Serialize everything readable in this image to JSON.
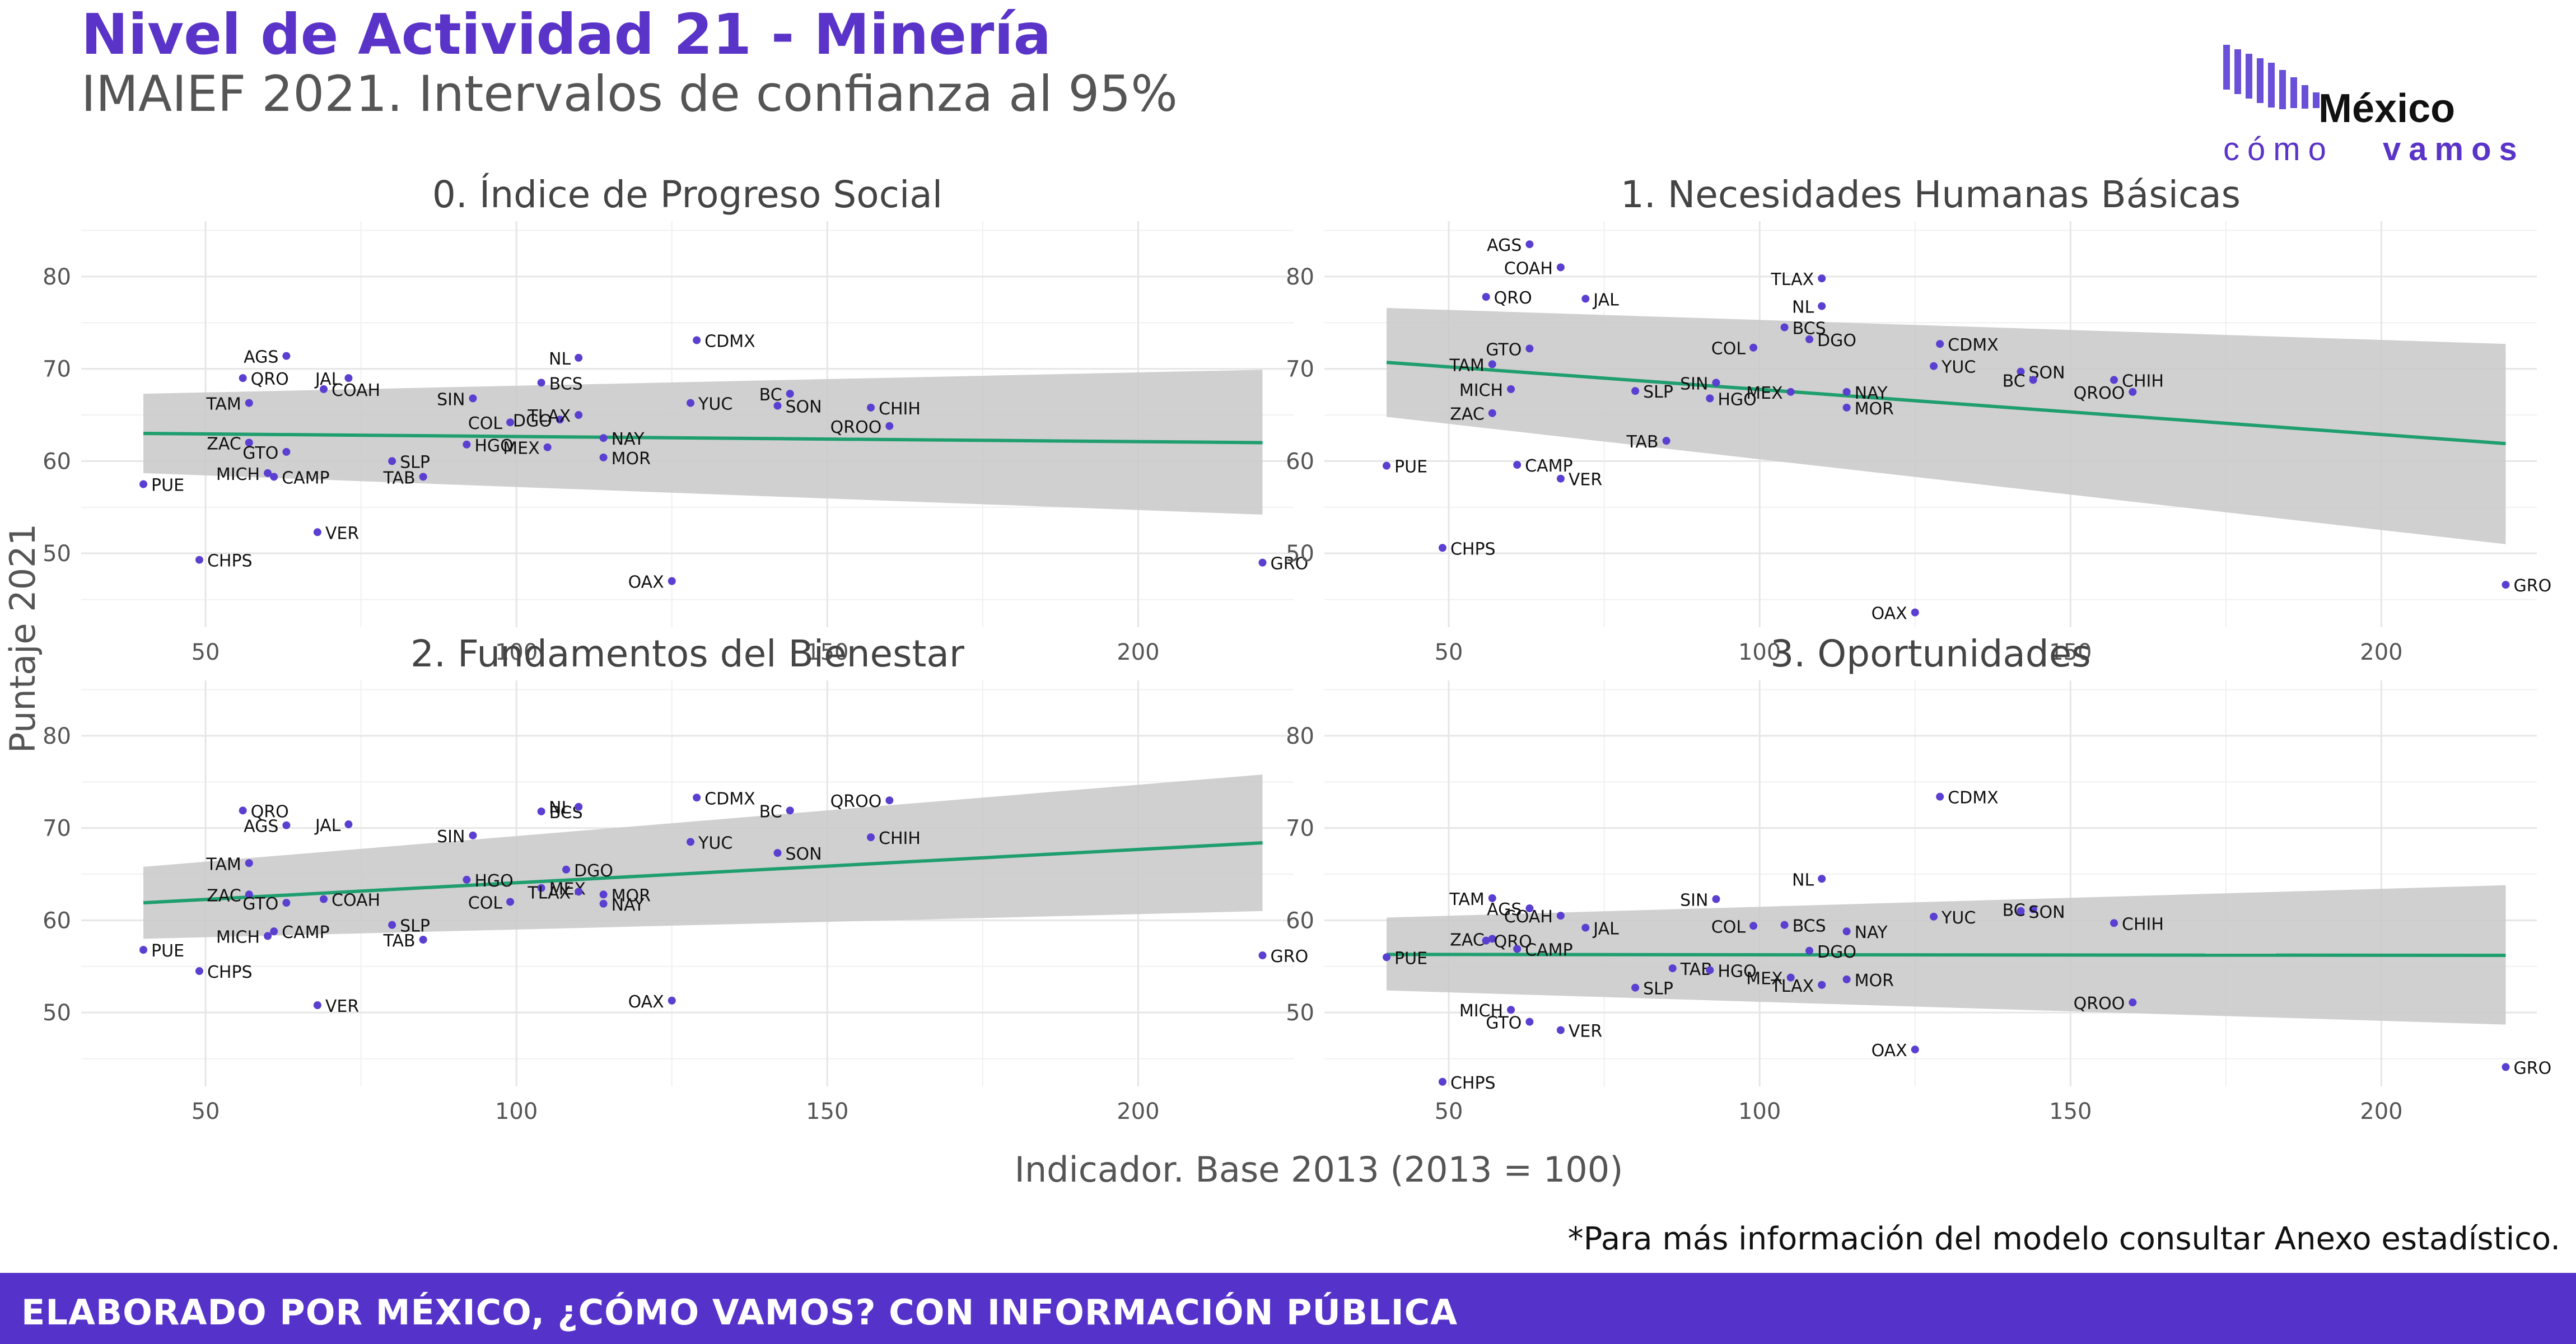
{
  "title": "Nivel de Actividad 21 - Minería",
  "subtitle": "IMAIEF 2021. Intervalos de confianza al 95%",
  "logo": {
    "line1": "México",
    "line2_a": "cómo",
    "line2_b": "vamos"
  },
  "footnote": "*Para más información del modelo consultar Anexo estadístico.",
  "footer": "ELABORADO POR MÉXICO, ¿CÓMO VAMOS? CON INFORMACIÓN PÚBLICA",
  "colors": {
    "title": "#5a34c8",
    "point": "#5a3fd0",
    "trend": "#1f9e6e",
    "ribbon": "#c8c8c8",
    "grid": "#e6e6e6",
    "footer": "#5532c9"
  },
  "chart_data": [
    {
      "type": "scatter",
      "title": "0. Índice de Progreso Social",
      "xlabel": "Indicador. Base 2013 (2013 = 100)",
      "ylabel": "Puntaje 2021",
      "xlim": [
        30,
        225
      ],
      "ylim": [
        42,
        86
      ],
      "xticks": [
        50,
        100,
        150,
        200
      ],
      "yticks": [
        50,
        60,
        70,
        80
      ],
      "grid": true,
      "trend": {
        "x": [
          40,
          220
        ],
        "y": [
          63.0,
          62.0
        ],
        "lower": [
          58.7,
          54.2
        ],
        "upper": [
          67.3,
          69.9
        ]
      },
      "points": [
        {
          "label": "PUE",
          "x": 40,
          "y": 57.5
        },
        {
          "label": "CHPS",
          "x": 49,
          "y": 49.3
        },
        {
          "label": "QRO",
          "x": 56,
          "y": 69.0
        },
        {
          "label": "AGS",
          "x": 63,
          "y": 71.4
        },
        {
          "label": "TAM",
          "x": 57,
          "y": 66.3
        },
        {
          "label": "COAH",
          "x": 69,
          "y": 67.8
        },
        {
          "label": "ZAC",
          "x": 57,
          "y": 62.0
        },
        {
          "label": "MICH",
          "x": 60,
          "y": 58.7
        },
        {
          "label": "GTO",
          "x": 63,
          "y": 61.0
        },
        {
          "label": "CAMP",
          "x": 61,
          "y": 58.3
        },
        {
          "label": "JAL",
          "x": 73,
          "y": 69.0
        },
        {
          "label": "VER",
          "x": 68,
          "y": 52.3
        },
        {
          "label": "SLP",
          "x": 80,
          "y": 60.0
        },
        {
          "label": "TAB",
          "x": 85,
          "y": 58.3
        },
        {
          "label": "SIN",
          "x": 93,
          "y": 66.8
        },
        {
          "label": "COL",
          "x": 99,
          "y": 64.2
        },
        {
          "label": "HGO",
          "x": 92,
          "y": 61.8
        },
        {
          "label": "BCS",
          "x": 104,
          "y": 68.5
        },
        {
          "label": "DGO",
          "x": 107,
          "y": 64.5
        },
        {
          "label": "MEX",
          "x": 105,
          "y": 61.5
        },
        {
          "label": "TLAX",
          "x": 110,
          "y": 65.0
        },
        {
          "label": "NAY",
          "x": 114,
          "y": 62.5
        },
        {
          "label": "MOR",
          "x": 114,
          "y": 60.4
        },
        {
          "label": "NL",
          "x": 110,
          "y": 71.2
        },
        {
          "label": "CDMX",
          "x": 129,
          "y": 73.1
        },
        {
          "label": "YUC",
          "x": 128,
          "y": 66.3
        },
        {
          "label": "OAX",
          "x": 125,
          "y": 47.0
        },
        {
          "label": "BC",
          "x": 144,
          "y": 67.3
        },
        {
          "label": "SON",
          "x": 142,
          "y": 66.0
        },
        {
          "label": "CHIH",
          "x": 157,
          "y": 65.8
        },
        {
          "label": "QROO",
          "x": 160,
          "y": 63.8
        },
        {
          "label": "GRO",
          "x": 220,
          "y": 49.0
        }
      ]
    },
    {
      "type": "scatter",
      "title": "1. Necesidades Humanas Básicas",
      "xlabel": "Indicador. Base 2013 (2013 = 100)",
      "ylabel": "Puntaje 2021",
      "xlim": [
        30,
        225
      ],
      "ylim": [
        42,
        86
      ],
      "xticks": [
        50,
        100,
        150,
        200
      ],
      "yticks": [
        50,
        60,
        70,
        80
      ],
      "grid": true,
      "trend": {
        "x": [
          40,
          220
        ],
        "y": [
          70.7,
          61.9
        ],
        "lower": [
          64.8,
          51.0
        ],
        "upper": [
          76.6,
          72.7
        ]
      },
      "points": [
        {
          "label": "AGS",
          "x": 63,
          "y": 83.5
        },
        {
          "label": "COAH",
          "x": 68,
          "y": 81.0
        },
        {
          "label": "TLAX",
          "x": 110,
          "y": 79.8
        },
        {
          "label": "QRO",
          "x": 56,
          "y": 77.8
        },
        {
          "label": "JAL",
          "x": 72,
          "y": 77.6
        },
        {
          "label": "NL",
          "x": 110,
          "y": 76.8
        },
        {
          "label": "BCS",
          "x": 104,
          "y": 74.5
        },
        {
          "label": "GTO",
          "x": 63,
          "y": 72.2
        },
        {
          "label": "DGO",
          "x": 108,
          "y": 73.2
        },
        {
          "label": "CDMX",
          "x": 129,
          "y": 72.7
        },
        {
          "label": "COL",
          "x": 99,
          "y": 72.3
        },
        {
          "label": "TAM",
          "x": 57,
          "y": 70.5
        },
        {
          "label": "SIN",
          "x": 93,
          "y": 68.5
        },
        {
          "label": "YUC",
          "x": 128,
          "y": 70.3
        },
        {
          "label": "SON",
          "x": 142,
          "y": 69.7
        },
        {
          "label": "BC",
          "x": 144,
          "y": 68.8
        },
        {
          "label": "CHIH",
          "x": 157,
          "y": 68.8
        },
        {
          "label": "QROO",
          "x": 160,
          "y": 67.5
        },
        {
          "label": "MICH",
          "x": 60,
          "y": 67.8
        },
        {
          "label": "SLP",
          "x": 80,
          "y": 67.6
        },
        {
          "label": "HGO",
          "x": 92,
          "y": 66.8
        },
        {
          "label": "MEX",
          "x": 105,
          "y": 67.5
        },
        {
          "label": "NAY",
          "x": 114,
          "y": 67.5
        },
        {
          "label": "MOR",
          "x": 114,
          "y": 65.8
        },
        {
          "label": "ZAC",
          "x": 57,
          "y": 65.2
        },
        {
          "label": "TAB",
          "x": 85,
          "y": 62.2
        },
        {
          "label": "CAMP",
          "x": 61,
          "y": 59.6
        },
        {
          "label": "PUE",
          "x": 40,
          "y": 59.5
        },
        {
          "label": "VER",
          "x": 68,
          "y": 58.1
        },
        {
          "label": "CHPS",
          "x": 49,
          "y": 50.6
        },
        {
          "label": "GRO",
          "x": 220,
          "y": 46.6
        },
        {
          "label": "OAX",
          "x": 125,
          "y": 43.6
        }
      ]
    },
    {
      "type": "scatter",
      "title": "2. Fundamentos del Bienestar",
      "xlabel": "Indicador. Base 2013 (2013 = 100)",
      "ylabel": "Puntaje 2021",
      "xlim": [
        30,
        225
      ],
      "ylim": [
        42,
        86
      ],
      "xticks": [
        50,
        100,
        150,
        200
      ],
      "yticks": [
        50,
        60,
        70,
        80
      ],
      "grid": true,
      "trend": {
        "x": [
          40,
          220
        ],
        "y": [
          61.9,
          68.4
        ],
        "lower": [
          58.0,
          61.0
        ],
        "upper": [
          65.8,
          75.8
        ]
      },
      "points": [
        {
          "label": "QRO",
          "x": 56,
          "y": 71.9
        },
        {
          "label": "AGS",
          "x": 63,
          "y": 70.3
        },
        {
          "label": "JAL",
          "x": 73,
          "y": 70.4
        },
        {
          "label": "BCS",
          "x": 104,
          "y": 71.8
        },
        {
          "label": "NL",
          "x": 110,
          "y": 72.3
        },
        {
          "label": "CDMX",
          "x": 129,
          "y": 73.3
        },
        {
          "label": "QROO",
          "x": 160,
          "y": 73.0
        },
        {
          "label": "BC",
          "x": 144,
          "y": 71.9
        },
        {
          "label": "SIN",
          "x": 93,
          "y": 69.2
        },
        {
          "label": "YUC",
          "x": 128,
          "y": 68.5
        },
        {
          "label": "SON",
          "x": 142,
          "y": 67.3
        },
        {
          "label": "CHIH",
          "x": 157,
          "y": 69.0
        },
        {
          "label": "TAM",
          "x": 57,
          "y": 66.2
        },
        {
          "label": "HGO",
          "x": 92,
          "y": 64.4
        },
        {
          "label": "DGO",
          "x": 108,
          "y": 65.5
        },
        {
          "label": "MEX",
          "x": 104,
          "y": 63.5
        },
        {
          "label": "TLAX",
          "x": 110,
          "y": 63.1
        },
        {
          "label": "MOR",
          "x": 114,
          "y": 62.8
        },
        {
          "label": "NAY",
          "x": 114,
          "y": 61.8
        },
        {
          "label": "ZAC",
          "x": 57,
          "y": 62.8
        },
        {
          "label": "COAH",
          "x": 69,
          "y": 62.3
        },
        {
          "label": "GTO",
          "x": 63,
          "y": 61.9
        },
        {
          "label": "COL",
          "x": 99,
          "y": 62.0
        },
        {
          "label": "SLP",
          "x": 80,
          "y": 59.5
        },
        {
          "label": "MICH",
          "x": 60,
          "y": 58.3
        },
        {
          "label": "CAMP",
          "x": 61,
          "y": 58.8
        },
        {
          "label": "TAB",
          "x": 85,
          "y": 57.9
        },
        {
          "label": "PUE",
          "x": 40,
          "y": 56.8
        },
        {
          "label": "CHPS",
          "x": 49,
          "y": 54.5
        },
        {
          "label": "GRO",
          "x": 220,
          "y": 56.2
        },
        {
          "label": "OAX",
          "x": 125,
          "y": 51.3
        },
        {
          "label": "VER",
          "x": 68,
          "y": 50.8
        }
      ]
    },
    {
      "type": "scatter",
      "title": "3. Oportunidades",
      "xlabel": "Indicador. Base 2013 (2013 = 100)",
      "ylabel": "Puntaje 2021",
      "xlim": [
        30,
        225
      ],
      "ylim": [
        42,
        86
      ],
      "xticks": [
        50,
        100,
        150,
        200
      ],
      "yticks": [
        50,
        60,
        70,
        80
      ],
      "grid": true,
      "trend": {
        "x": [
          40,
          220
        ],
        "y": [
          56.3,
          56.2
        ],
        "lower": [
          52.4,
          48.7
        ],
        "upper": [
          60.3,
          63.8
        ]
      },
      "points": [
        {
          "label": "CDMX",
          "x": 129,
          "y": 73.4
        },
        {
          "label": "NL",
          "x": 110,
          "y": 64.5
        },
        {
          "label": "TAM",
          "x": 57,
          "y": 62.4
        },
        {
          "label": "AGS",
          "x": 63,
          "y": 61.3
        },
        {
          "label": "COAH",
          "x": 68,
          "y": 60.5
        },
        {
          "label": "SIN",
          "x": 93,
          "y": 62.3
        },
        {
          "label": "BCS",
          "x": 104,
          "y": 59.5
        },
        {
          "label": "YUC",
          "x": 128,
          "y": 60.4
        },
        {
          "label": "BC",
          "x": 144,
          "y": 61.2
        },
        {
          "label": "SON",
          "x": 142,
          "y": 61.0
        },
        {
          "label": "NAY",
          "x": 114,
          "y": 58.8
        },
        {
          "label": "CHIH",
          "x": 157,
          "y": 59.7
        },
        {
          "label": "ZAC",
          "x": 57,
          "y": 58.0
        },
        {
          "label": "JAL",
          "x": 72,
          "y": 59.2
        },
        {
          "label": "COL",
          "x": 99,
          "y": 59.4
        },
        {
          "label": "QRO",
          "x": 56,
          "y": 57.8
        },
        {
          "label": "DGO",
          "x": 108,
          "y": 56.7
        },
        {
          "label": "CAMP",
          "x": 61,
          "y": 56.9
        },
        {
          "label": "PUE",
          "x": 40,
          "y": 56.0
        },
        {
          "label": "TAB",
          "x": 86,
          "y": 54.8
        },
        {
          "label": "HGO",
          "x": 92,
          "y": 54.6
        },
        {
          "label": "MEX",
          "x": 105,
          "y": 53.8
        },
        {
          "label": "MOR",
          "x": 114,
          "y": 53.6
        },
        {
          "label": "SLP",
          "x": 80,
          "y": 52.7
        },
        {
          "label": "TLAX",
          "x": 110,
          "y": 53.0
        },
        {
          "label": "QROO",
          "x": 160,
          "y": 51.1
        },
        {
          "label": "MICH",
          "x": 60,
          "y": 50.3
        },
        {
          "label": "GTO",
          "x": 63,
          "y": 49.0
        },
        {
          "label": "VER",
          "x": 68,
          "y": 48.1
        },
        {
          "label": "OAX",
          "x": 125,
          "y": 46.0
        },
        {
          "label": "GRO",
          "x": 220,
          "y": 44.1
        },
        {
          "label": "CHPS",
          "x": 49,
          "y": 42.5
        }
      ]
    }
  ]
}
